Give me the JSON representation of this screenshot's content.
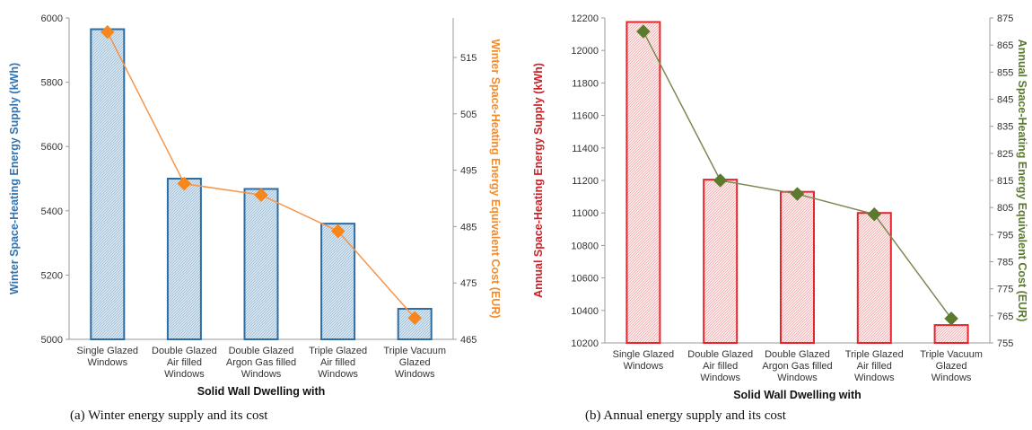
{
  "chart_data": [
    {
      "type": "bar",
      "categories": [
        [
          "Single Glazed",
          "Windows"
        ],
        [
          "Double Glazed",
          "Air filled",
          "Windows"
        ],
        [
          "Double Glazed",
          "Argon Gas filled",
          "Windows"
        ],
        [
          "Triple Glazed",
          "Air filled",
          "Windows"
        ],
        [
          "Triple Vacuum",
          "Glazed",
          "Windows"
        ]
      ],
      "series": [
        {
          "kind": "bar",
          "axis": "left",
          "values": [
            5965,
            5500,
            5468,
            5360,
            5095
          ]
        },
        {
          "kind": "line",
          "axis": "right",
          "values": [
            519.5,
            492.6,
            490.6,
            484.2,
            468.8
          ]
        }
      ],
      "xlabel": "Solid Wall Dwelling with",
      "ylabel": "Winter Space-Heating Energy Supply (kWh)",
      "ylabel_right": "Winter Space-Heating Energy Equivalent Cost  (EUR)",
      "ylim": [
        5000,
        6000
      ],
      "yticks": [
        5000,
        5200,
        5400,
        5600,
        5800,
        6000
      ],
      "ylim_right": [
        465,
        522
      ],
      "yticks_right": [
        465,
        475,
        485,
        495,
        505,
        515
      ],
      "colors": {
        "bar": "#2e6da4",
        "bar_fill": "#d2e3ee",
        "line": "#f7954a",
        "marker": "#f7861d",
        "ylabel": "#2e75b6",
        "ylabel_right": "#f08c2d"
      },
      "caption": "(a) Winter energy supply and its cost"
    },
    {
      "type": "bar",
      "categories": [
        [
          "Single Glazed",
          "Windows"
        ],
        [
          "Double Glazed",
          "Air filled",
          "Windows"
        ],
        [
          "Double Glazed",
          "Argon Gas filled",
          "Windows"
        ],
        [
          "Triple Glazed",
          "Air filled",
          "Windows"
        ],
        [
          "Triple Vacuum",
          "Glazed",
          "Windows"
        ]
      ],
      "series": [
        {
          "kind": "bar",
          "axis": "left",
          "values": [
            12175,
            11205,
            11130,
            11000,
            10310
          ]
        },
        {
          "kind": "line",
          "axis": "right",
          "values": [
            870,
            815,
            810,
            802.5,
            764
          ]
        }
      ],
      "xlabel": "Solid Wall Dwelling with",
      "ylabel": "Annual Space-Heating Energy Supply (kWh)",
      "ylabel_right": "Annual Space-Heating Energy Equivalent Cost  (EUR)",
      "ylim": [
        10200,
        12200
      ],
      "yticks": [
        10200,
        10400,
        10600,
        10800,
        11000,
        11200,
        11400,
        11600,
        11800,
        12000,
        12200
      ],
      "ylim_right": [
        755,
        875
      ],
      "yticks_right": [
        755,
        765,
        775,
        785,
        795,
        805,
        815,
        825,
        835,
        845,
        855,
        865,
        875
      ],
      "colors": {
        "bar": "#e8252c",
        "bar_fill": "#fbe9ea",
        "line": "#7a8a52",
        "marker": "#5c7a2e",
        "ylabel": "#d11f26",
        "ylabel_right": "#5a7a2c"
      },
      "caption": "(b) Annual energy supply and its cost"
    }
  ]
}
